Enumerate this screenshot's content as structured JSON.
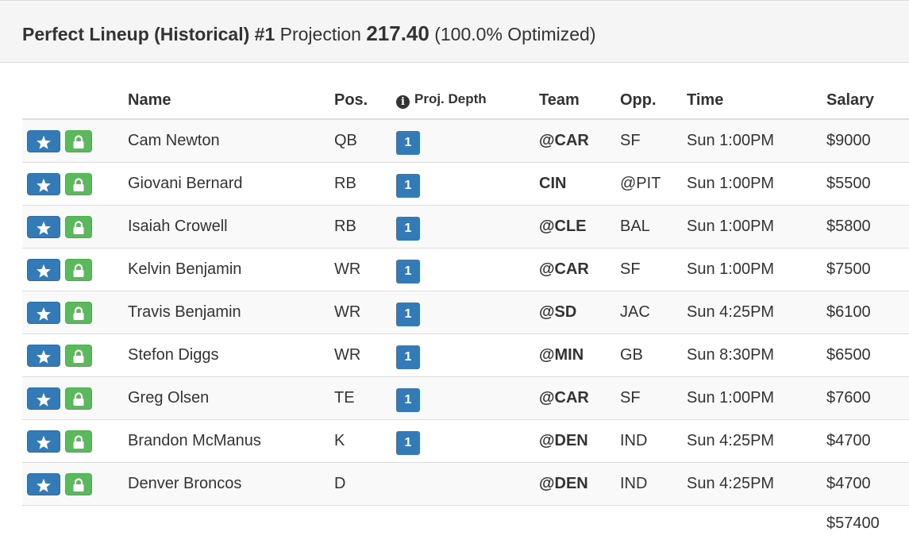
{
  "header": {
    "title_bold": "Perfect Lineup (Historical) #1",
    "projection_label": "Projection",
    "projection_value": "217.40",
    "optimized": "(100.0% Optimized)"
  },
  "columns": {
    "name": "Name",
    "pos": "Pos.",
    "depth": "Proj. Depth",
    "team": "Team",
    "opp": "Opp.",
    "time": "Time",
    "salary": "Salary"
  },
  "icons": {
    "favorite": "star-icon",
    "lock": "lock-icon",
    "info": "info-icon"
  },
  "colors": {
    "primary": "#337ab7",
    "success": "#5cb85c",
    "heading_bg": "#f5f5f5"
  },
  "players": [
    {
      "name": "Cam Newton",
      "pos": "QB",
      "depth": "1",
      "team": "@CAR",
      "opp": "SF",
      "time": "Sun 1:00PM",
      "salary": "$9000"
    },
    {
      "name": "Giovani Bernard",
      "pos": "RB",
      "depth": "1",
      "team": "CIN",
      "opp": "@PIT",
      "time": "Sun 1:00PM",
      "salary": "$5500"
    },
    {
      "name": "Isaiah Crowell",
      "pos": "RB",
      "depth": "1",
      "team": "@CLE",
      "opp": "BAL",
      "time": "Sun 1:00PM",
      "salary": "$5800"
    },
    {
      "name": "Kelvin Benjamin",
      "pos": "WR",
      "depth": "1",
      "team": "@CAR",
      "opp": "SF",
      "time": "Sun 1:00PM",
      "salary": "$7500"
    },
    {
      "name": "Travis Benjamin",
      "pos": "WR",
      "depth": "1",
      "team": "@SD",
      "opp": "JAC",
      "time": "Sun 4:25PM",
      "salary": "$6100"
    },
    {
      "name": "Stefon Diggs",
      "pos": "WR",
      "depth": "1",
      "team": "@MIN",
      "opp": "GB",
      "time": "Sun 8:30PM",
      "salary": "$6500"
    },
    {
      "name": "Greg Olsen",
      "pos": "TE",
      "depth": "1",
      "team": "@CAR",
      "opp": "SF",
      "time": "Sun 1:00PM",
      "salary": "$7600"
    },
    {
      "name": "Brandon McManus",
      "pos": "K",
      "depth": "1",
      "team": "@DEN",
      "opp": "IND",
      "time": "Sun 4:25PM",
      "salary": "$4700"
    },
    {
      "name": "Denver Broncos",
      "pos": "D",
      "depth": "",
      "team": "@DEN",
      "opp": "IND",
      "time": "Sun 4:25PM",
      "salary": "$4700"
    }
  ],
  "total_salary": "$57400"
}
